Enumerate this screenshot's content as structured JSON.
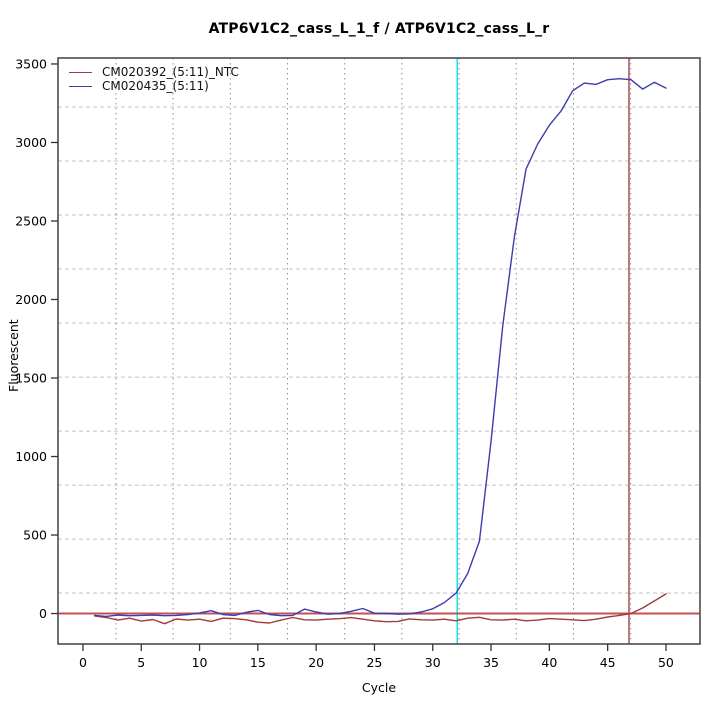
{
  "chart_data": {
    "type": "line",
    "title": "ATP6V1C2_cass_L_1_f / ATP6V1C2_cass_L_r",
    "xlabel": "Cycle",
    "ylabel": "Fluorescent",
    "xlim": [
      -2.14,
      52.92
    ],
    "ylim": [
      -194,
      3538
    ],
    "x_ticks": [
      0,
      5,
      10,
      15,
      20,
      25,
      30,
      35,
      40,
      45,
      50
    ],
    "y_ticks": [
      0,
      500,
      1000,
      1500,
      2000,
      2500,
      3000,
      3500
    ],
    "grid": {
      "vertical_at": [
        2.83,
        7.73,
        12.64,
        17.54,
        22.45,
        27.35,
        32.26,
        37.16,
        42.07,
        46.97
      ],
      "horizontal_at": [
        131,
        474,
        818,
        1162,
        1506,
        1850,
        2194,
        2538,
        2882,
        3226
      ]
    },
    "legend_position": "top-left",
    "series": [
      {
        "name": "CM020392_(5:11)_NTC",
        "color": "#A03C3C",
        "x_start": 1,
        "values": [
          -15,
          -25,
          -42,
          -30,
          -48,
          -38,
          -65,
          -35,
          -42,
          -36,
          -50,
          -30,
          -32,
          -40,
          -55,
          -60,
          -42,
          -25,
          -40,
          -42,
          -36,
          -33,
          -26,
          -36,
          -46,
          -52,
          -50,
          -34,
          -40,
          -42,
          -36,
          -46,
          -30,
          -24,
          -40,
          -42,
          -36,
          -46,
          -42,
          -32,
          -36,
          -40,
          -45,
          -36,
          -22,
          -12,
          0,
          35,
          80,
          125
        ]
      },
      {
        "name": "CM020435_(5:11)",
        "color": "#3C3CB0",
        "x_start": 1,
        "values": [
          -12,
          -18,
          -10,
          -14,
          -12,
          -10,
          -14,
          -12,
          -6,
          4,
          18,
          -6,
          -12,
          8,
          20,
          -6,
          -14,
          -12,
          28,
          10,
          -4,
          0,
          14,
          32,
          2,
          0,
          -4,
          -2,
          10,
          30,
          70,
          130,
          255,
          460,
          1100,
          1830,
          2400,
          2830,
          2990,
          3110,
          3200,
          3330,
          3378,
          3370,
          3400,
          3406,
          3400,
          3340,
          3383,
          3346
        ]
      }
    ],
    "threshold_lines": [
      {
        "y": 0,
        "color": "#C05252"
      }
    ],
    "marker_lines": [
      {
        "x": 32.1,
        "color": "#00DFE8",
        "name": "ct-marker-cyan"
      },
      {
        "x": 46.83,
        "color": "#9E4545",
        "name": "ct-marker-dark-red"
      }
    ]
  }
}
